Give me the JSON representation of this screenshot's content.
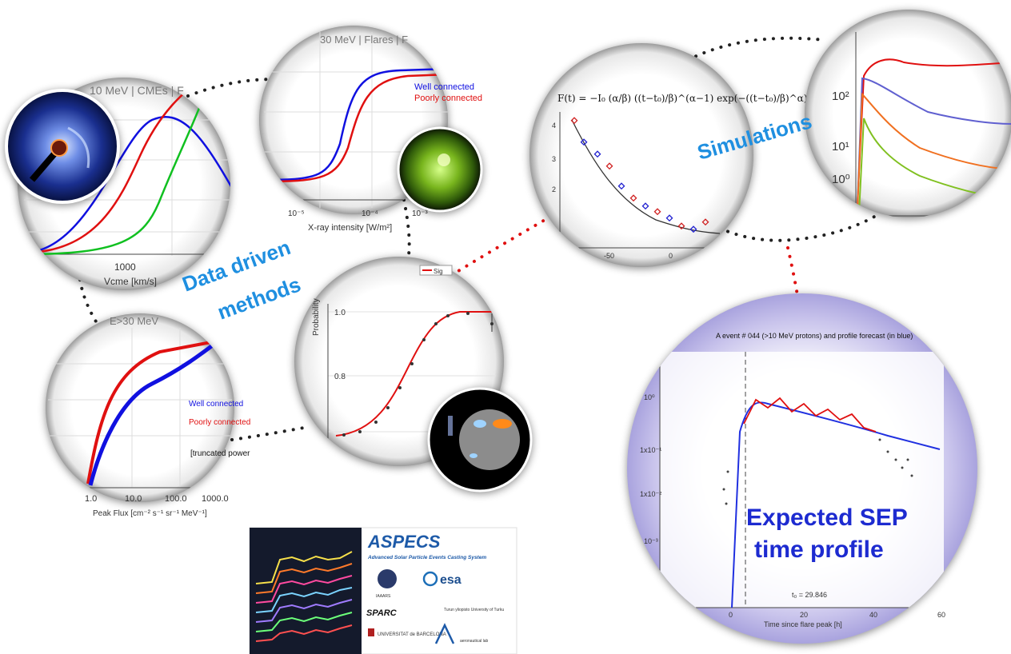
{
  "labels": {
    "data_driven_1": "Data driven",
    "data_driven_2": "methods",
    "simulations": "Simulations",
    "sep_line1": "Expected SEP",
    "sep_line2": "time profile"
  },
  "panel_cme": {
    "title": "10 MeV | CMEs | F",
    "tick": "1000",
    "xlabel": "Vcme [km/s]"
  },
  "panel_flare": {
    "title": "30 MeV | Flares | F",
    "legend_well": "Well connected",
    "legend_poor": "Poorly connected",
    "xticks": [
      "10⁻⁵",
      "10⁻⁴",
      "10⁻³"
    ],
    "xlabel": "X-ray intensity [W/m²]"
  },
  "panel_e30": {
    "title": "E>30 MeV",
    "legend_well": "Well connected",
    "legend_poor": "Poorly connected",
    "legend_trunc": "[truncated power",
    "xticks": [
      "1.0",
      "10.0",
      "100.0",
      "1000.0"
    ],
    "xlabel": "Peak Flux [cm⁻² s⁻¹ sr⁻¹ MeV⁻¹]"
  },
  "panel_prob": {
    "legend": "Sig",
    "ylabel": "Probability",
    "yticks": [
      "1.0",
      "0.8"
    ]
  },
  "panel_formula": {
    "formula": "F(t) = −I₀ (α/β) ((t−t₀)/β)^(α−1) exp(−((t−t₀)/β)^α)",
    "yticks": [
      "4",
      "3",
      "2"
    ],
    "xticks": [
      "-50",
      "0"
    ]
  },
  "panel_sim": {
    "yticks": [
      "10²",
      "10¹",
      "10⁰"
    ]
  },
  "panel_sep": {
    "title": "A event # 044 (>10 MeV protons) and profile forecast (in blue)",
    "yticks": [
      "10⁰",
      "1x10⁻¹",
      "1x10⁻²",
      "10⁻³"
    ],
    "xticks": [
      "0",
      "20",
      "40",
      "60"
    ],
    "xlabel": "Time since flare peak [h]",
    "t0": "t₀ = 29.846"
  },
  "logo": {
    "name": "ASPECS",
    "subtitle": "Advanced Solar Particle Events Casting System",
    "partners": [
      "IAAARS",
      "esa",
      "SPARC",
      "Turun yliopisto University of Turku",
      "UNIVERSITAT de BARCELONA",
      "aeronautical lab"
    ]
  },
  "colors": {
    "accent_blue": "#1f8fe0",
    "sep_blue": "#1d2bd0",
    "well_connected": "#1010e0",
    "poorly_connected": "#e01010",
    "lens_purple": "#a9a3de"
  }
}
